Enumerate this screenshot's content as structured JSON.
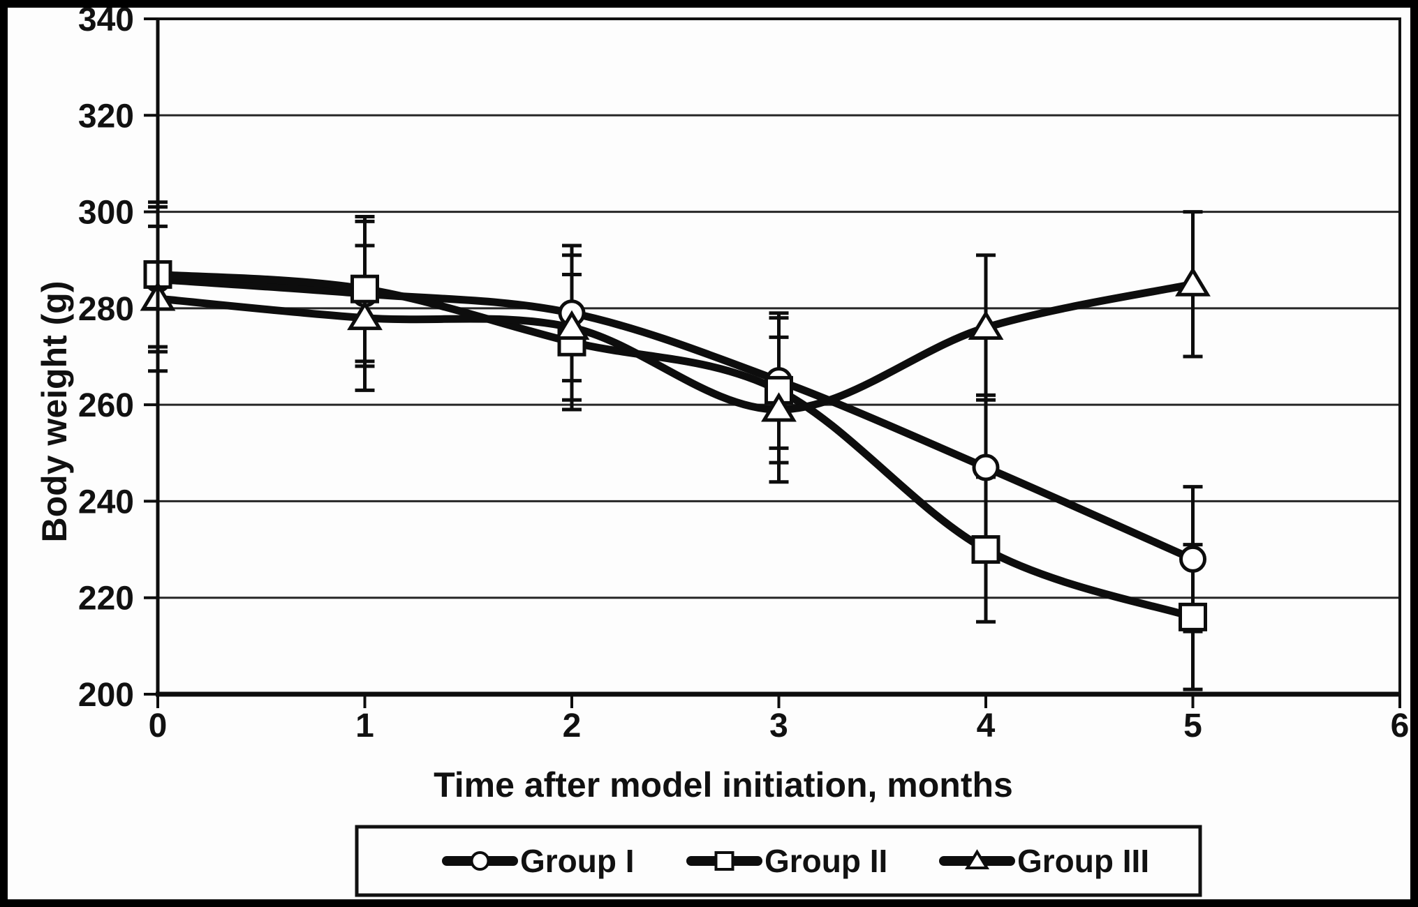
{
  "chart_data": {
    "type": "line",
    "title": "",
    "xlabel": "Time after model initiation, months",
    "ylabel": "Body weight (g)",
    "x": [
      0,
      1,
      2,
      3,
      4,
      5
    ],
    "xlim": [
      0,
      6
    ],
    "ylim": [
      200,
      340
    ],
    "x_ticks": [
      0,
      1,
      2,
      3,
      4,
      5,
      6
    ],
    "y_ticks": [
      200,
      220,
      240,
      260,
      280,
      300,
      320,
      340
    ],
    "grid": "horizontal-only",
    "error_bars": "plus-minus-sd-with-caps",
    "legend": {
      "position": "bottom-center-boxed"
    },
    "series": [
      {
        "name": "Group I",
        "marker": "circle",
        "values": [
          286,
          283,
          279,
          265,
          247,
          228
        ],
        "err": [
          15,
          15,
          14,
          14,
          15,
          15
        ]
      },
      {
        "name": "Group II",
        "marker": "square",
        "values": [
          287,
          284,
          273,
          263,
          230,
          216
        ],
        "err": [
          15,
          15,
          14,
          15,
          15,
          15
        ]
      },
      {
        "name": "Group III",
        "marker": "triangle",
        "values": [
          282,
          278,
          276,
          259,
          276,
          285
        ],
        "err": [
          15,
          15,
          15,
          15,
          15,
          15
        ]
      }
    ],
    "colors": {
      "line": "#0d0d0d",
      "marker_fill": "#ffffff",
      "background": "#fdfdfd",
      "border": "#000000"
    }
  }
}
